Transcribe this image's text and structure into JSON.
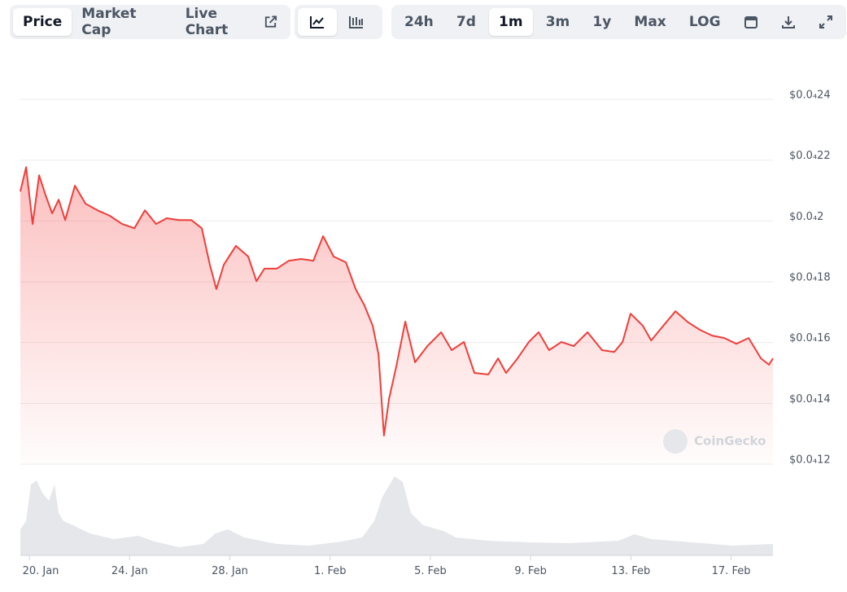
{
  "toolbar": {
    "views": [
      "Price",
      "Market Cap",
      "Live Chart"
    ],
    "ranges": [
      "24h",
      "7d",
      "1m",
      "3m",
      "1y",
      "Max",
      "LOG"
    ]
  },
  "watermark": "CoinGecko",
  "chart_data": {
    "type": "line",
    "color": "#ef3e3a",
    "grid": true,
    "xlim": [
      19.64,
      49.67
    ],
    "xticks": [
      {
        "value": 20,
        "label": "20. Jan"
      },
      {
        "value": 24,
        "label": "24. Jan"
      },
      {
        "value": 28,
        "label": "28. Jan"
      },
      {
        "value": 32,
        "label": "1. Feb"
      },
      {
        "value": 36,
        "label": "5. Feb"
      },
      {
        "value": 40,
        "label": "9. Feb"
      },
      {
        "value": 44,
        "label": "13. Feb"
      },
      {
        "value": 48,
        "label": "17. Feb"
      }
    ],
    "ylim": [
      1.2e-05,
      2.4e-05
    ],
    "yticks": [
      {
        "value": 1.2e-05,
        "label": "$0.0₄12"
      },
      {
        "value": 1.4e-05,
        "label": "$0.0₄14"
      },
      {
        "value": 1.6e-05,
        "label": "$0.0₄16"
      },
      {
        "value": 1.8e-05,
        "label": "$0.0₄18"
      },
      {
        "value": 2e-05,
        "label": "$0.0₄2"
      },
      {
        "value": 2.2e-05,
        "label": "$0.0₄22"
      },
      {
        "value": 2.4e-05,
        "label": "$0.0₄24"
      }
    ],
    "x": [
      19.64,
      19.87,
      20.13,
      20.39,
      20.65,
      20.91,
      21.17,
      21.43,
      21.82,
      22.24,
      22.72,
      23.21,
      23.7,
      24.19,
      24.61,
      25.06,
      25.48,
      25.97,
      26.46,
      26.88,
      27.2,
      27.46,
      27.76,
      28.24,
      28.73,
      29.06,
      29.38,
      29.87,
      30.35,
      30.84,
      31.33,
      31.72,
      32.14,
      32.63,
      33.02,
      33.37,
      33.7,
      33.93,
      34.15,
      34.35,
      34.64,
      35.0,
      35.39,
      35.88,
      36.43,
      36.85,
      37.34,
      37.76,
      38.31,
      38.7,
      39.02,
      39.48,
      39.93,
      40.32,
      40.74,
      41.23,
      41.72,
      42.27,
      42.85,
      43.34,
      43.67,
      43.99,
      44.48,
      44.81,
      45.29,
      45.78,
      46.26,
      46.75,
      47.24,
      47.73,
      48.21,
      48.7,
      49.19,
      49.51,
      49.67
    ],
    "values": [
      2.097e-05,
      2.177e-05,
      1.99e-05,
      2.15e-05,
      2.084e-05,
      2.025e-05,
      2.07e-05,
      2.003e-05,
      2.116e-05,
      2.057e-05,
      2.035e-05,
      2.017e-05,
      1.99e-05,
      1.976e-05,
      2.035e-05,
      1.99e-05,
      2.009e-05,
      2.003e-05,
      2.003e-05,
      1.976e-05,
      1.856e-05,
      1.776e-05,
      1.856e-05,
      1.918e-05,
      1.883e-05,
      1.802e-05,
      1.843e-05,
      1.843e-05,
      1.869e-05,
      1.875e-05,
      1.869e-05,
      1.95e-05,
      1.883e-05,
      1.864e-05,
      1.776e-05,
      1.722e-05,
      1.655e-05,
      1.561e-05,
      1.294e-05,
      1.414e-05,
      1.521e-05,
      1.669e-05,
      1.535e-05,
      1.588e-05,
      1.634e-05,
      1.575e-05,
      1.602e-05,
      1.5e-05,
      1.495e-05,
      1.548e-05,
      1.5e-05,
      1.548e-05,
      1.602e-05,
      1.634e-05,
      1.575e-05,
      1.602e-05,
      1.588e-05,
      1.634e-05,
      1.575e-05,
      1.569e-05,
      1.602e-05,
      1.695e-05,
      1.655e-05,
      1.607e-05,
      1.655e-05,
      1.703e-05,
      1.668e-05,
      1.642e-05,
      1.623e-05,
      1.615e-05,
      1.596e-05,
      1.615e-05,
      1.548e-05,
      1.527e-05,
      1.548e-05
    ]
  }
}
